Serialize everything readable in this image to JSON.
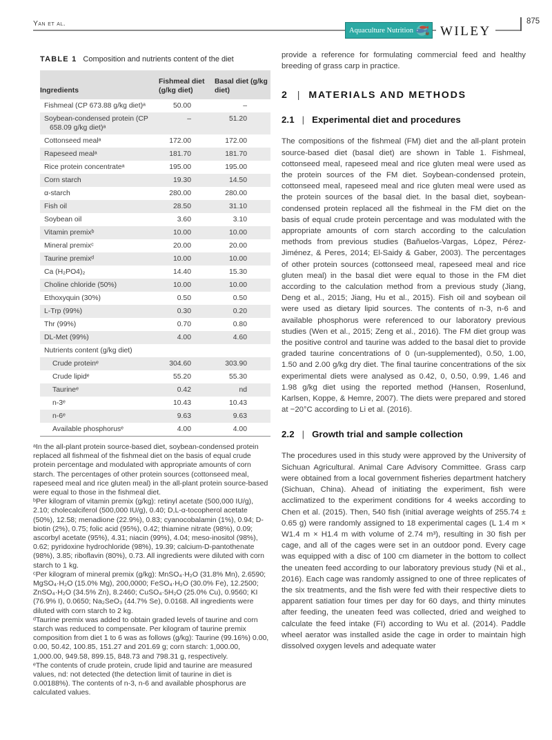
{
  "ui": {
    "heading_divider": "|"
  },
  "header": {
    "running_head": "Yan et al.",
    "badge_label": "Aquaculture Nutrition",
    "publisher": "WILEY",
    "page_number": "875"
  },
  "table": {
    "label": "TABLE 1",
    "caption": "Composition and nutrients content of the diet",
    "columns": [
      "Ingredients",
      "Fishmeal diet (g/kg diet)",
      "Basal diet (g/kg diet)"
    ],
    "rows": [
      {
        "name": "Fishmeal (CP 673.88 g/kg diet)ᵃ",
        "fishmeal": "50.00",
        "basal": "–"
      },
      {
        "name": "Soybean-condensed protein (CP 658.09 g/kg diet)ᵃ",
        "fishmeal": "–",
        "basal": "51.20"
      },
      {
        "name": "Cottonseed mealᵃ",
        "fishmeal": "172.00",
        "basal": "172.00"
      },
      {
        "name": "Rapeseed mealᵃ",
        "fishmeal": "181.70",
        "basal": "181.70"
      },
      {
        "name": "Rice protein concentrateᵃ",
        "fishmeal": "195.00",
        "basal": "195.00"
      },
      {
        "name": "Corn starch",
        "fishmeal": "19.30",
        "basal": "14.50"
      },
      {
        "name": "α-starch",
        "fishmeal": "280.00",
        "basal": "280.00"
      },
      {
        "name": "Fish oil",
        "fishmeal": "28.50",
        "basal": "31.10"
      },
      {
        "name": "Soybean oil",
        "fishmeal": "3.60",
        "basal": "3.10"
      },
      {
        "name": "Vitamin premixᵇ",
        "fishmeal": "10.00",
        "basal": "10.00"
      },
      {
        "name": "Mineral premixᶜ",
        "fishmeal": "20.00",
        "basal": "20.00"
      },
      {
        "name": "Taurine premixᵈ",
        "fishmeal": "10.00",
        "basal": "10.00"
      },
      {
        "name": "Ca (H₂PO4)₂",
        "fishmeal": "14.40",
        "basal": "15.30"
      },
      {
        "name": "Choline chloride (50%)",
        "fishmeal": "10.00",
        "basal": "10.00"
      },
      {
        "name": "Ethoxyquin (30%)",
        "fishmeal": "0.50",
        "basal": "0.50"
      },
      {
        "name": "L-Trp (99%)",
        "fishmeal": "0.30",
        "basal": "0.20"
      },
      {
        "name": "Thr (99%)",
        "fishmeal": "0.70",
        "basal": "0.80"
      },
      {
        "name": "DL-Met (99%)",
        "fishmeal": "4.00",
        "basal": "4.60"
      },
      {
        "name": "Nutrients content (g/kg diet)",
        "fishmeal": "",
        "basal": "",
        "section": true
      },
      {
        "name": "Crude proteinᵉ",
        "fishmeal": "304.60",
        "basal": "303.90",
        "indent": true
      },
      {
        "name": "Crude lipidᵉ",
        "fishmeal": "55.20",
        "basal": "55.30",
        "indent": true
      },
      {
        "name": "Taurineᵉ",
        "fishmeal": "0.42",
        "basal": "nd",
        "indent": true
      },
      {
        "name": "n-3ᵉ",
        "fishmeal": "10.43",
        "basal": "10.43",
        "indent": true
      },
      {
        "name": "n-6ᵉ",
        "fishmeal": "9.63",
        "basal": "9.63",
        "indent": true
      },
      {
        "name": "Available phosphorusᵉ",
        "fishmeal": "4.00",
        "basal": "4.00",
        "indent": true
      }
    ],
    "footnotes": [
      "ᵃIn the all-plant protein source-based diet, soybean-condensed protein replaced all fishmeal of the fishmeal diet on the basis of equal crude protein percentage and modulated with appropriate amounts of corn starch. The percentages of other protein sources (cottonseed meal, rapeseed meal and rice gluten meal) in the all-plant protein source-based were equal to those in the fishmeal diet.",
      "ᵇPer kilogram of vitamin premix (g/kg): retinyl acetate (500,000 IU/g), 2.10; cholecalciferol (500,000 IU/g), 0.40; D,L-α-tocopherol acetate (50%), 12.58; menadione (22.9%), 0.83; cyanocobalamin (1%), 0.94; D-biotin (2%), 0.75; folic acid (95%), 0.42; thiamine nitrate (98%), 0.09; ascorbyl acetate (95%), 4.31; niacin (99%), 4.04; meso-inositol (98%), 0.62; pyridoxine hydrochloride (98%), 19.39; calcium-D-pantothenate (98%), 3.85; riboflavin (80%), 0.73. All ingredients were diluted with corn starch to 1 kg.",
      "ᶜPer kilogram of mineral premix (g/kg): MnSO₄·H₂O (31.8% Mn), 2.6590; MgSO₄·H₂O (15.0% Mg), 200,0000; FeSO₄·H₂O (30.0% Fe), 12.2500; ZnSO₄·H₂O (34.5% Zn), 8.2460; CuSO₄·5H₂O (25.0% Cu), 0.9560; KI (76.9% I), 0.0650; Na₂SeO₃ (44.7% Se), 0.0168. All ingredients were diluted with corn starch to 2 kg.",
      "ᵈTaurine premix was added to obtain graded levels of taurine and corn starch was reduced to compensate. Per kilogram of taurine premix composition from diet 1 to 6 was as follows (g/kg): Taurine (99.16%) 0.00, 0.00, 50.42, 100.85, 151.27 and 201.69 g; corn starch: 1,000.00, 1,000.00, 949.58, 899.15, 848.73 and 798.31 g, respectively.",
      "ᵉThe contents of crude protein, crude lipid and taurine are measured values, nd: not detected (the detection limit of taurine in diet is 0.00188%). The contents of n-3, n-6 and available phosphorus are calculated values."
    ]
  },
  "article": {
    "intro_fragment": "provide a reference for formulating commercial feed and healthy breeding of grass carp in practice.",
    "section": {
      "number": "2",
      "title": "MATERIALS AND METHODS"
    },
    "subsections": [
      {
        "number": "2.1",
        "title": "Experimental diet and procedures",
        "paragraph": "The compositions of the fishmeal (FM) diet and the all-plant protein source-based diet (basal diet) are shown in Table 1. Fishmeal, cottonseed meal, rapeseed meal and rice gluten meal were used as the protein sources of the FM diet. Soybean-condensed protein, cottonseed meal, rapeseed meal and rice gluten meal were used as the protein sources of the basal diet. In the basal diet, soybean-condensed protein replaced all the fishmeal in the FM diet on the basis of equal crude protein percentage and was modulated with the appropriate amounts of corn starch according to the calculation methods from previous studies (Bañuelos-Vargas, López, Pérez-Jiménez, & Peres, 2014; El-Saidy & Gaber, 2003). The percentages of other protein sources (cottonseed meal, rapeseed meal and rice gluten meal) in the basal diet were equal to those in the FM diet according to the calculation method from a previous study (Jiang, Deng et al., 2015; Jiang, Hu et al., 2015). Fish oil and soybean oil were used as dietary lipid sources. The contents of n-3, n-6 and available phosphorus were referenced to our laboratory previous studies (Wen et al., 2015; Zeng et al., 2016). The FM diet group was the positive control and taurine was added to the basal diet to provide graded taurine concentrations of 0 (un-supplemented), 0.50, 1.00, 1.50 and 2.00 g/kg dry diet. The final taurine concentrations of the six experimental diets were analysed as 0.42, 0, 0.50, 0.99, 1.46 and 1.98 g/kg diet using the reported method (Hansen, Rosenlund, Karlsen, Koppe, & Hemre, 2007). The diets were prepared and stored at −20°C according to Li et al. (2016)."
      },
      {
        "number": "2.2",
        "title": "Growth trial and sample collection",
        "paragraph": "The procedures used in this study were approved by the University of Sichuan Agricultural. Animal Care Advisory Committee. Grass carp were obtained from a local government fisheries department hatchery (Sichuan, China). Ahead of initiating the experiment, fish were acclimatized to the experiment conditions for 4 weeks according to Chen et al. (2015). Then, 540 fish (initial average weights of 255.74 ± 0.65 g) were randomly assigned to 18 experimental cages (L 1.4 m × W1.4 m × H1.4 m with volume of 2.74 m³), resulting in 30 fish per cage, and all of the cages were set in an outdoor pond. Every cage was equipped with a disc of 100 cm diameter in the bottom to collect the uneaten feed according to our laboratory previous study (Ni et al., 2016). Each cage was randomly assigned to one of three replicates of the six treatments, and the fish were fed with their respective diets to apparent satiation four times per day for 60 days, and thirty minutes after feeding, the uneaten feed was collected, dried and weighed to calculate the feed intake (FI) according to Wu et al. (2014). Paddle wheel aerator was installed aside the cage in order to maintain high dissolved oxygen levels and adequate water"
      }
    ]
  }
}
